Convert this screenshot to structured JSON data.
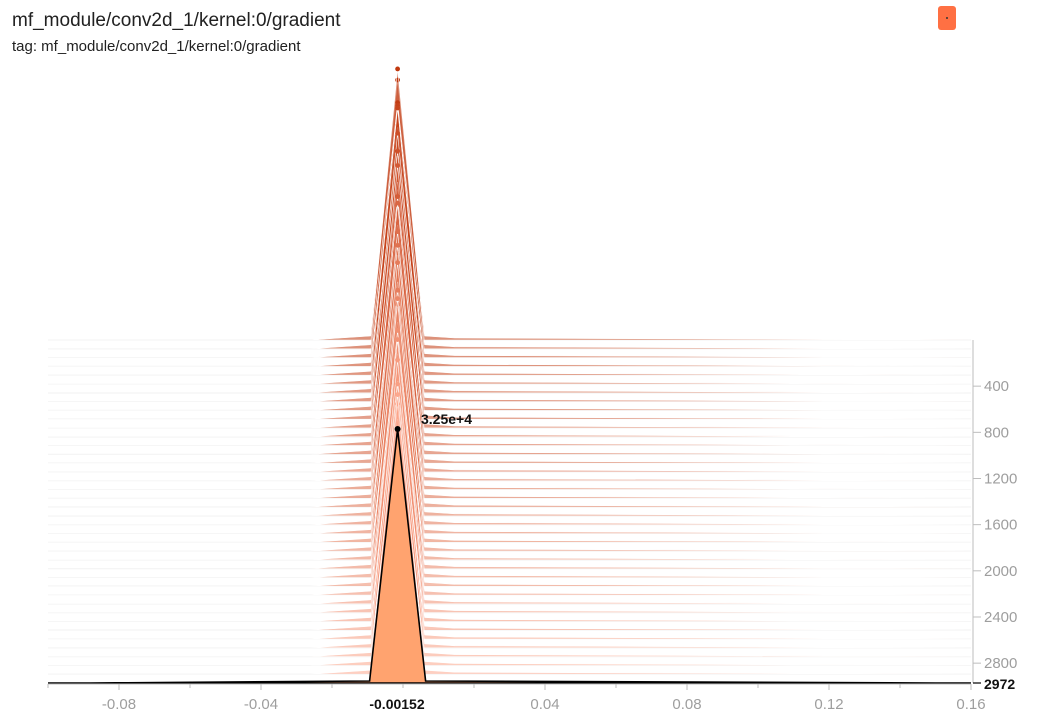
{
  "header": {
    "title": "mf_module/conv2d_1/kernel:0/gradient",
    "tag": "tag: mf_module/conv2d_1/kernel:0/gradient"
  },
  "chart_data": {
    "type": "area",
    "mode": "offset",
    "xlim": [
      -0.1,
      0.16
    ],
    "ylim": [
      0,
      2972
    ],
    "x_ticks": [
      "-0.08",
      "-0.04",
      "0.04",
      "0.08",
      "0.12",
      "0.16"
    ],
    "y_ticks": [
      "400",
      "800",
      "1200",
      "1600",
      "2000",
      "2400",
      "2800"
    ],
    "highlight": {
      "x_label": "-0.00152",
      "y_label": "2972",
      "value_label": "3.25e+4",
      "x": -0.00152,
      "step": 2972,
      "value": 32500
    },
    "colors": {
      "old": "#bf360c",
      "new": "#ffab91",
      "highlight_fill": "#ffa36f",
      "highlight_stroke": "#000000",
      "accent": "#ff7043"
    }
  }
}
